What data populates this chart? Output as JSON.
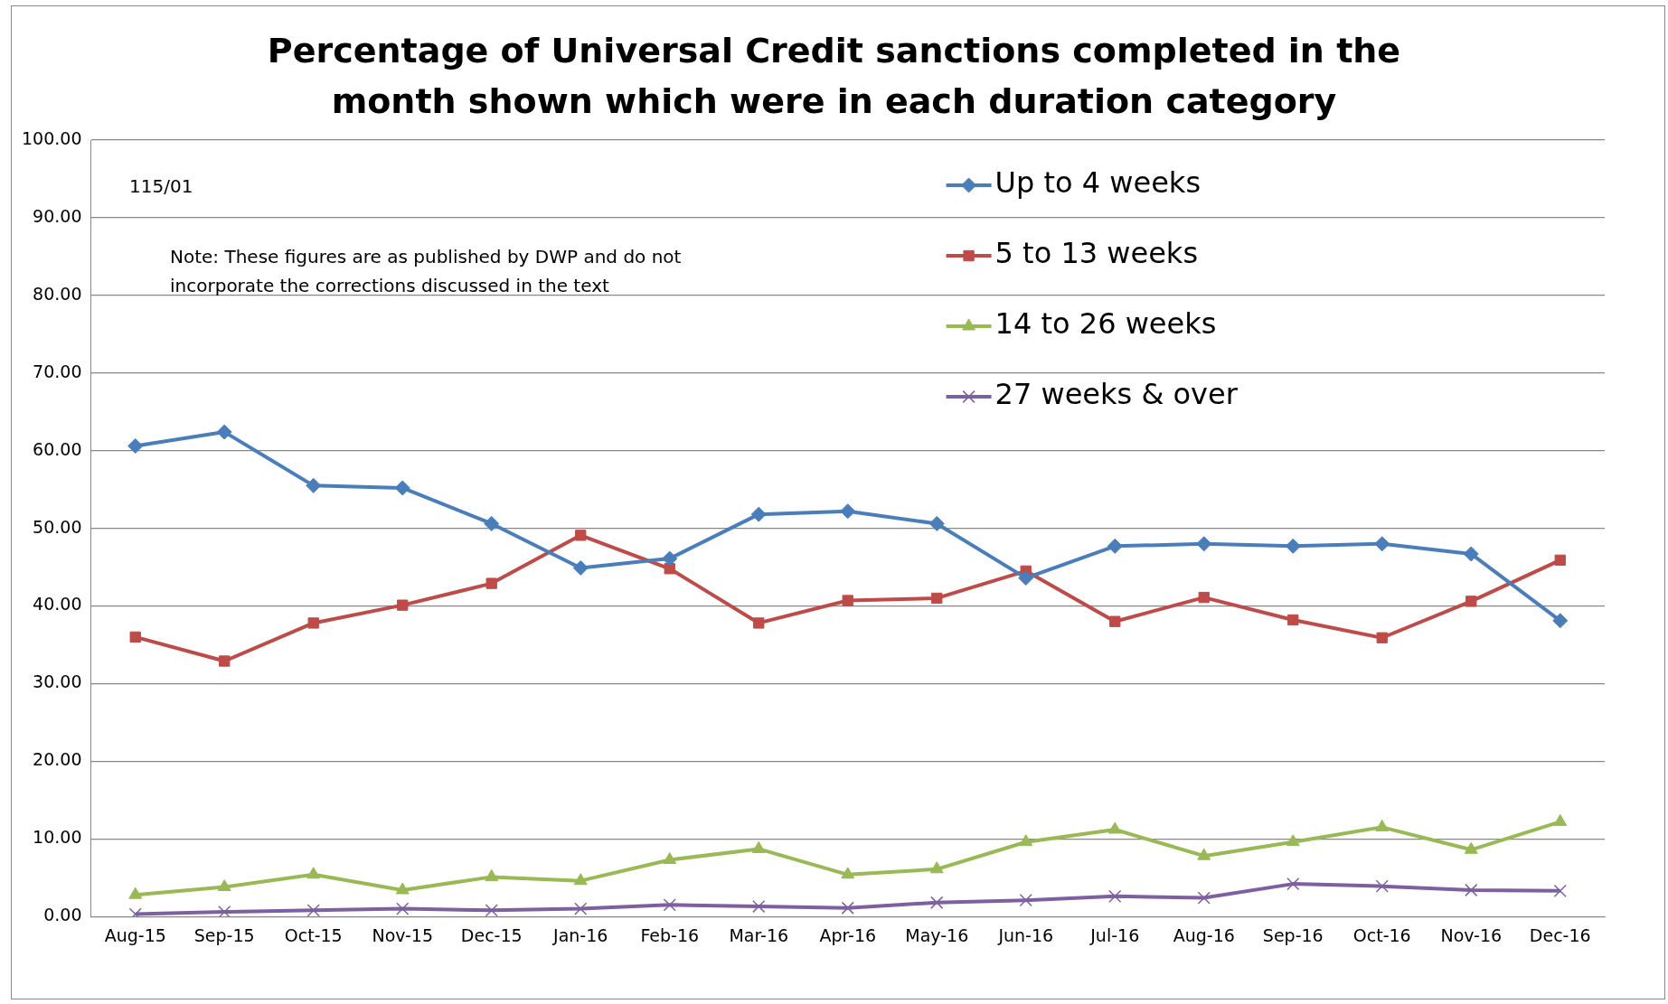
{
  "chart_data": {
    "type": "line",
    "title": "Percentage of Universal Credit sanctions completed in the month shown which were in each duration category",
    "categories": [
      "Aug-15",
      "Sep-15",
      "Oct-15",
      "Nov-15",
      "Dec-15",
      "Jan-16",
      "Feb-16",
      "Mar-16",
      "Apr-16",
      "May-16",
      "Jun-16",
      "Jul-16",
      "Aug-16",
      "Sep-16",
      "Oct-16",
      "Nov-16",
      "Dec-16"
    ],
    "series": [
      {
        "name": "Up to 4 weeks",
        "color": "#4a7ebb",
        "marker": "diamond",
        "values": [
          60.6,
          62.4,
          55.5,
          55.2,
          50.6,
          44.9,
          46.1,
          51.8,
          52.2,
          50.6,
          43.6,
          47.7,
          48.0,
          47.7,
          48.0,
          46.7,
          38.1
        ]
      },
      {
        "name": "5 to 13 weeks",
        "color": "#be4b48",
        "marker": "square",
        "values": [
          36.0,
          32.9,
          37.8,
          40.1,
          42.9,
          49.1,
          44.8,
          37.8,
          40.7,
          41.0,
          44.5,
          38.0,
          41.1,
          38.2,
          35.9,
          40.6,
          45.9
        ]
      },
      {
        "name": "14 to 26 weeks",
        "color": "#98b954",
        "marker": "triangle",
        "values": [
          2.8,
          3.8,
          5.4,
          3.4,
          5.1,
          4.6,
          7.3,
          8.7,
          5.4,
          6.1,
          9.6,
          11.2,
          7.8,
          9.6,
          11.5,
          8.6,
          12.2
        ]
      },
      {
        "name": "27 weeks & over",
        "color": "#7d60a0",
        "marker": "cross",
        "values": [
          0.3,
          0.6,
          0.8,
          1.0,
          0.8,
          1.0,
          1.5,
          1.3,
          1.1,
          1.8,
          2.1,
          2.6,
          2.4,
          4.2,
          3.9,
          3.4,
          3.3
        ]
      }
    ],
    "ylim": [
      0,
      100
    ],
    "yticks": [
      {
        "value": 0,
        "label": "0.00"
      },
      {
        "value": 10,
        "label": "10.00"
      },
      {
        "value": 20,
        "label": "20.00"
      },
      {
        "value": 30,
        "label": "30.00"
      },
      {
        "value": 40,
        "label": "40.00"
      },
      {
        "value": 50,
        "label": "50.00"
      },
      {
        "value": 60,
        "label": "60.00"
      },
      {
        "value": 70,
        "label": "70.00"
      },
      {
        "value": 80,
        "label": "80.00"
      },
      {
        "value": 90,
        "label": "90.00"
      },
      {
        "value": 100,
        "label": "100.00"
      }
    ],
    "grid": "y",
    "legend": "top right",
    "annotations": [
      "115/01",
      "Note: These figures  are as published  by DWP and do not\nincorporate the corrections discussed in the text"
    ]
  }
}
